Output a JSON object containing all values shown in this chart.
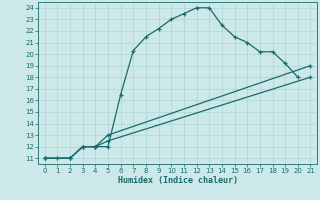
{
  "xlabel": "Humidex (Indice chaleur)",
  "bg_color": "#cce8e8",
  "line_color": "#1a6b6b",
  "xlim": [
    -0.5,
    21.5
  ],
  "ylim": [
    10.5,
    24.5
  ],
  "xticks": [
    0,
    1,
    2,
    3,
    4,
    5,
    6,
    7,
    8,
    9,
    10,
    11,
    12,
    13,
    14,
    15,
    16,
    17,
    18,
    19,
    20,
    21
  ],
  "yticks": [
    11,
    12,
    13,
    14,
    15,
    16,
    17,
    18,
    19,
    20,
    21,
    22,
    23,
    24
  ],
  "line1_x": [
    0,
    1,
    2,
    3,
    4,
    5,
    6,
    7,
    8,
    9,
    10,
    11,
    12,
    13,
    14,
    15,
    16,
    17,
    18,
    19,
    20
  ],
  "line1_y": [
    11,
    11,
    11,
    12,
    12,
    12,
    16.5,
    20.3,
    21.5,
    22.2,
    23,
    23.5,
    24,
    24,
    22.5,
    21.5,
    21.0,
    20.2,
    20.2,
    19.2,
    18.0
  ],
  "line2_x": [
    0,
    2,
    3,
    4,
    5,
    21
  ],
  "line2_y": [
    11,
    11,
    12,
    12,
    13,
    19
  ],
  "line3_x": [
    0,
    2,
    3,
    4,
    5,
    21
  ],
  "line3_y": [
    11,
    11,
    12,
    12,
    12.5,
    18
  ],
  "grid_color": "#aed4d4"
}
